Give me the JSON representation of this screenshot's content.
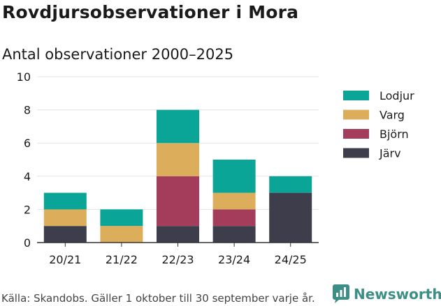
{
  "title": "Rovdjursobservationer i Mora",
  "subtitle": "Antal observationer 2000–2025",
  "footer": {
    "source": "Källa: Skandobs. Gäller 1 oktober till 30 september varje år.",
    "brand": "Newsworthy"
  },
  "colors": {
    "Lodjur": "#0aa597",
    "Varg": "#dcae5c",
    "Björn": "#a43d5b",
    "Järv": "#3d3d4b",
    "brand": "#3d8f86"
  },
  "icons": {
    "brand_logo": "newsworthy-logo-icon"
  },
  "chart_data": {
    "type": "bar",
    "stacked": true,
    "title": "Rovdjursobservationer i Mora",
    "subtitle": "Antal observationer 2000–2025",
    "xlabel": "",
    "ylabel": "",
    "ylim": [
      0,
      10
    ],
    "yticks": [
      0,
      2,
      4,
      6,
      8,
      10
    ],
    "grid": true,
    "legend_position": "right",
    "categories": [
      "20/21",
      "21/22",
      "22/23",
      "23/24",
      "24/25"
    ],
    "series": [
      {
        "name": "Järv",
        "values": [
          1,
          0,
          1,
          1,
          3
        ]
      },
      {
        "name": "Björn",
        "values": [
          0,
          0,
          3,
          1,
          0
        ]
      },
      {
        "name": "Varg",
        "values": [
          1,
          1,
          2,
          1,
          0
        ]
      },
      {
        "name": "Lodjur",
        "values": [
          1,
          1,
          2,
          2,
          1
        ]
      }
    ],
    "legend_order": [
      "Lodjur",
      "Varg",
      "Björn",
      "Järv"
    ]
  }
}
